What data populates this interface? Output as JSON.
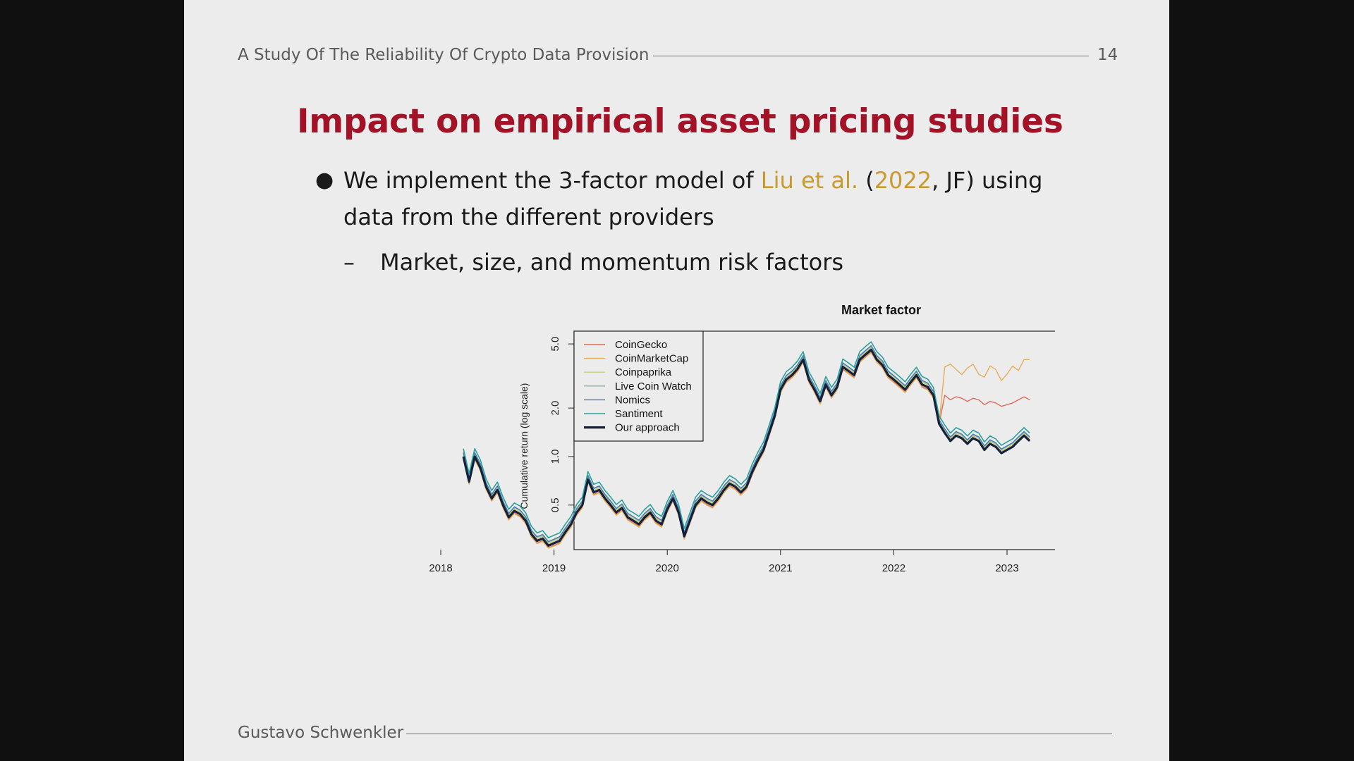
{
  "header": {
    "title": "A Study Of The Reliability Of Crypto Data Provision",
    "page_number": "14"
  },
  "slide": {
    "title": "Impact on empirical asset pricing studies",
    "bullet1": {
      "pre": "We implement the 3-factor model of ",
      "cite_authors": "Liu et al.",
      "paren_open": " (",
      "cite_year": "2022",
      "post": ", JF) using data from the different providers"
    },
    "bullet2": "Market, size, and momentum risk factors"
  },
  "footer": {
    "author": "Gustavo Schwenkler"
  },
  "chart_data": {
    "type": "line",
    "title": "Market factor",
    "ylabel": "Cumulative return (log scale)",
    "y_scale": "log",
    "ylim": [
      0.27,
      6.0
    ],
    "y_ticks": [
      0.5,
      1.0,
      2.0,
      5.0
    ],
    "y_tick_labels": [
      "0.5",
      "1.0",
      "2.0",
      "5.0"
    ],
    "xlim": [
      2018.0,
      2023.4
    ],
    "x_ticks": [
      2018,
      2019,
      2020,
      2021,
      2022,
      2023
    ],
    "x_tick_labels": [
      "2018",
      "2019",
      "2020",
      "2021",
      "2022",
      "2023"
    ],
    "legend_position": "top-left",
    "base": {
      "x": [
        2018.2,
        2018.25,
        2018.3,
        2018.35,
        2018.4,
        2018.45,
        2018.5,
        2018.55,
        2018.6,
        2018.65,
        2018.7,
        2018.75,
        2018.8,
        2018.85,
        2018.9,
        2018.95,
        2019.0,
        2019.05,
        2019.1,
        2019.15,
        2019.2,
        2019.25,
        2019.3,
        2019.35,
        2019.4,
        2019.45,
        2019.5,
        2019.55,
        2019.6,
        2019.65,
        2019.7,
        2019.75,
        2019.8,
        2019.85,
        2019.9,
        2019.95,
        2020.0,
        2020.05,
        2020.1,
        2020.15,
        2020.2,
        2020.25,
        2020.3,
        2020.35,
        2020.4,
        2020.45,
        2020.5,
        2020.55,
        2020.6,
        2020.65,
        2020.7,
        2020.75,
        2020.8,
        2020.85,
        2020.9,
        2020.95,
        2021.0,
        2021.05,
        2021.1,
        2021.15,
        2021.2,
        2021.25,
        2021.3,
        2021.35,
        2021.4,
        2021.45,
        2021.5,
        2021.55,
        2021.6,
        2021.65,
        2021.7,
        2021.75,
        2021.8,
        2021.85,
        2021.9,
        2021.95,
        2022.0,
        2022.05,
        2022.1,
        2022.15,
        2022.2,
        2022.25,
        2022.3,
        2022.35,
        2022.4,
        2022.45,
        2022.5,
        2022.55,
        2022.6,
        2022.65,
        2022.7,
        2022.75,
        2022.8,
        2022.85,
        2022.9,
        2022.95,
        2023.0,
        2023.05,
        2023.1,
        2023.15,
        2023.2
      ],
      "y": [
        1.0,
        0.7,
        1.0,
        0.85,
        0.65,
        0.55,
        0.62,
        0.5,
        0.42,
        0.46,
        0.44,
        0.4,
        0.33,
        0.3,
        0.31,
        0.28,
        0.29,
        0.3,
        0.34,
        0.38,
        0.45,
        0.5,
        0.72,
        0.6,
        0.62,
        0.55,
        0.5,
        0.45,
        0.48,
        0.42,
        0.4,
        0.38,
        0.42,
        0.45,
        0.4,
        0.38,
        0.47,
        0.55,
        0.45,
        0.32,
        0.4,
        0.5,
        0.55,
        0.52,
        0.5,
        0.55,
        0.62,
        0.68,
        0.65,
        0.6,
        0.65,
        0.8,
        0.95,
        1.1,
        1.4,
        1.8,
        2.6,
        3.0,
        3.2,
        3.5,
        4.0,
        3.0,
        2.6,
        2.2,
        2.8,
        2.4,
        2.7,
        3.6,
        3.4,
        3.2,
        4.0,
        4.3,
        4.6,
        4.0,
        3.7,
        3.2,
        3.0,
        2.8,
        2.6,
        2.9,
        3.2,
        2.8,
        2.7,
        2.4,
        1.6,
        1.4,
        1.25,
        1.35,
        1.3,
        1.2,
        1.3,
        1.25,
        1.1,
        1.2,
        1.15,
        1.05,
        1.1,
        1.15,
        1.25,
        1.35,
        1.25
      ]
    },
    "series": [
      {
        "name": "CoinGecko",
        "color": "#e06c5c",
        "width": 1.4
      },
      {
        "name": "CoinMarketCap",
        "color": "#e4ad59",
        "width": 1.4
      },
      {
        "name": "Coinpaprika",
        "color": "#c9cc7a",
        "width": 1.4
      },
      {
        "name": "Live Coin Watch",
        "color": "#8fb6a3",
        "width": 1.4
      },
      {
        "name": "Nomics",
        "color": "#4a7bb3",
        "width": 1.4
      },
      {
        "name": "Santiment",
        "color": "#2aa29a",
        "width": 1.6
      },
      {
        "name": "Our approach",
        "color": "#15203a",
        "width": 3.2
      }
    ]
  }
}
